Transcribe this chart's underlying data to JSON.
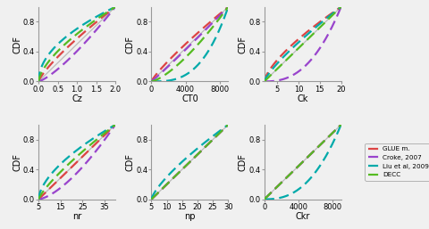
{
  "subplots": [
    {
      "xlabel": "Cz",
      "xlim": [
        0.0,
        2.0
      ],
      "xticks": [
        0.0,
        0.5,
        1.0,
        1.5,
        2.0
      ],
      "xlo": 0.0,
      "xhi": 2.0
    },
    {
      "xlabel": "CT0",
      "xlim": [
        0,
        9000
      ],
      "xticks": [
        0,
        4000,
        8000
      ],
      "xlo": 0,
      "xhi": 9000
    },
    {
      "xlabel": "Ck",
      "xlim": [
        2,
        20
      ],
      "xticks": [
        5,
        10,
        15,
        20
      ],
      "xlo": 2,
      "xhi": 20
    },
    {
      "xlabel": "nr",
      "xlim": [
        5,
        40
      ],
      "xticks": [
        5,
        15,
        25,
        35
      ],
      "xlo": 5,
      "xhi": 40
    },
    {
      "xlabel": "np",
      "xlim": [
        5,
        30
      ],
      "xticks": [
        5,
        10,
        15,
        20,
        25,
        30
      ],
      "xlo": 5,
      "xhi": 30
    },
    {
      "xlabel": "Ckr",
      "xlim": [
        0,
        9000
      ],
      "xticks": [
        0,
        4000,
        8000
      ],
      "xlo": 0,
      "xhi": 9000
    }
  ],
  "methods": [
    {
      "name": "GLUE m.",
      "color": "#dd4444",
      "lw": 1.6
    },
    {
      "name": "Croke, 2007",
      "color": "#9944cc",
      "lw": 1.6
    },
    {
      "name": "Liu et al, 2009",
      "color": "#00aaaa",
      "lw": 1.6
    },
    {
      "name": "DECC",
      "color": "#55bb22",
      "lw": 1.6
    }
  ],
  "uniform_color": "#bbbbbb",
  "uniform_lw": 0.9,
  "ylim": [
    0.0,
    1.0
  ],
  "yticks": [
    0.0,
    0.4,
    0.8
  ],
  "ylabel": "CDF",
  "background": "#f0f0f0"
}
